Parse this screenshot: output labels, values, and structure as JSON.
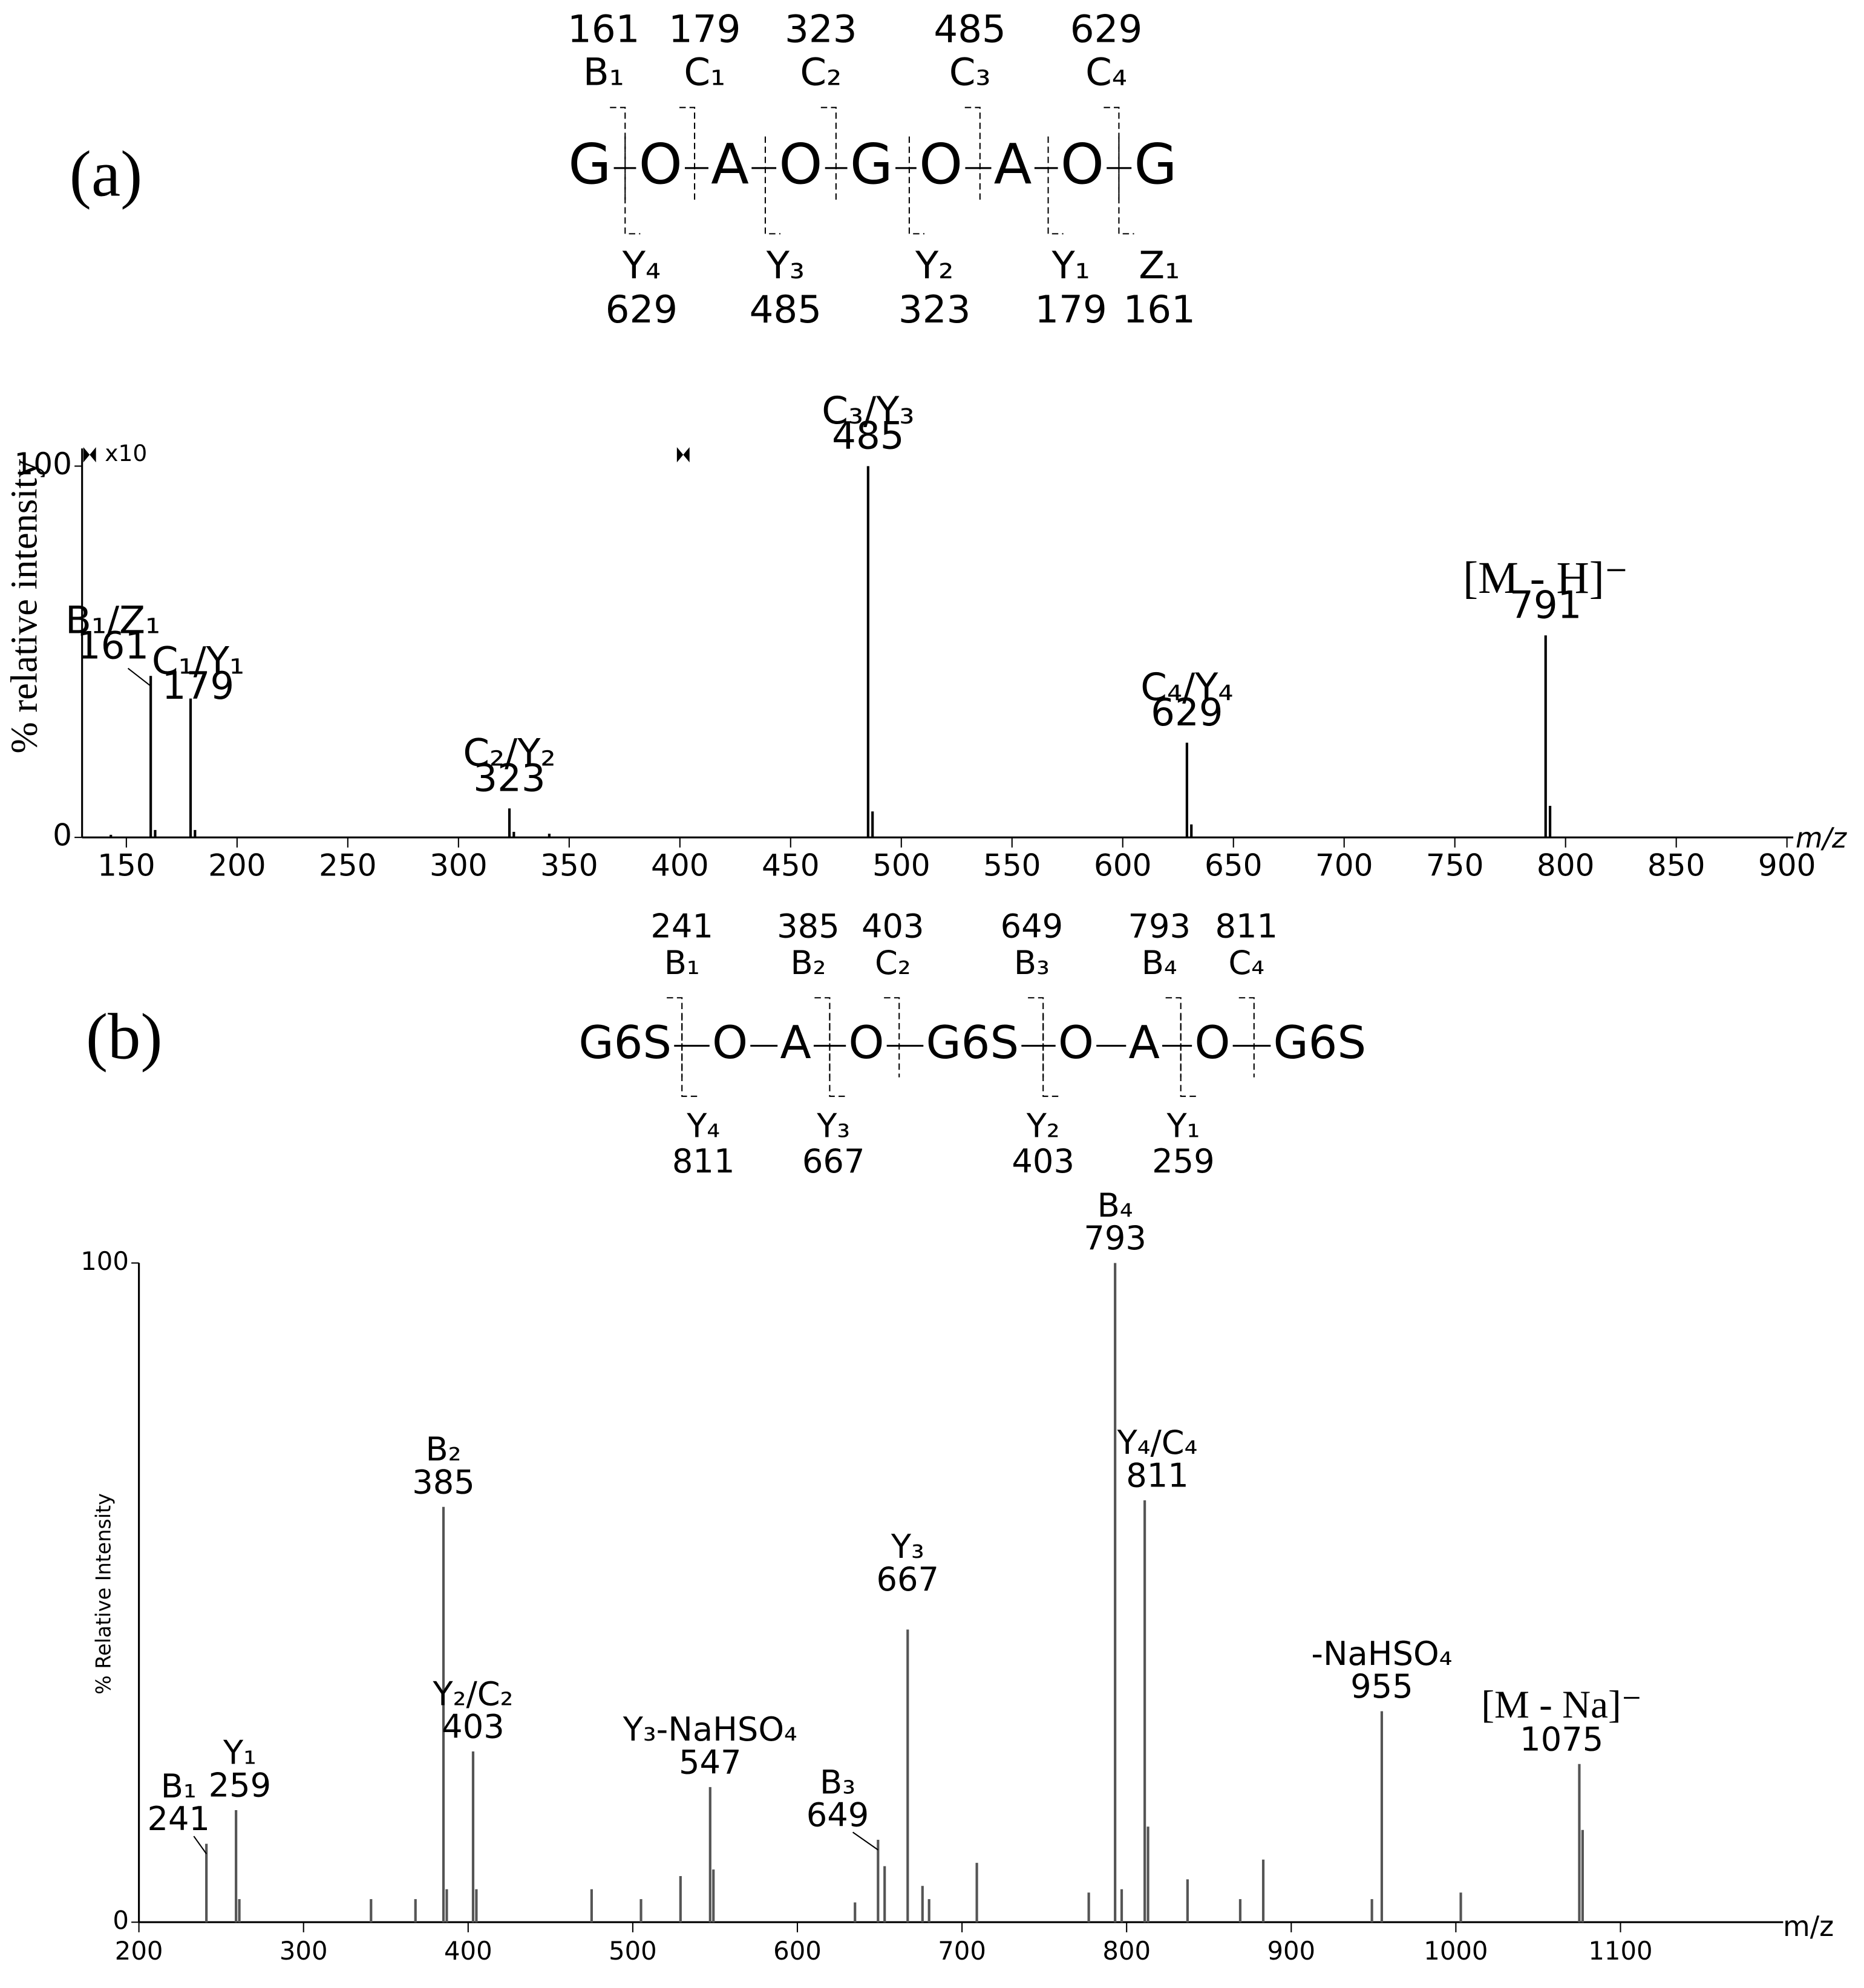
{
  "chart_data": [
    {
      "type": "stem",
      "panel_label": "(a)",
      "annotation": "x10",
      "y_label": "% relative intensity",
      "x_label": "m/z",
      "structure": {
        "residues": [
          "G",
          "O",
          "A",
          "O",
          "G",
          "O",
          "A",
          "O",
          "G"
        ],
        "top": [
          {
            "mass": 161,
            "ion": "B₁"
          },
          {
            "mass": 179,
            "ion": "C₁"
          },
          {
            "mass": 323,
            "ion": "C₂"
          },
          {
            "mass": 485,
            "ion": "C₃"
          },
          {
            "mass": 629,
            "ion": "C₄"
          }
        ],
        "bottom": [
          {
            "ion": "Y₄",
            "mass": 629
          },
          {
            "ion": "Y₃",
            "mass": 485
          },
          {
            "ion": "Y₂",
            "mass": 323
          },
          {
            "ion": "Y₁",
            "mass": 179
          },
          {
            "ion": "Z₁",
            "mass": 161
          }
        ]
      },
      "x": [
        143,
        161,
        163,
        179,
        181,
        323,
        325,
        341,
        485,
        487,
        629,
        631,
        791,
        793
      ],
      "values": [
        0.7,
        43.5,
        2,
        37.4,
        2,
        7.8,
        1.5,
        1,
        100,
        7,
        25.5,
        3.5,
        54.4,
        8.5
      ],
      "labels": [
        null,
        "B₁/Z₁",
        null,
        "C₁/Y₁",
        null,
        "C₂/Y₂",
        null,
        null,
        "C₃/Y₃",
        null,
        "C₄/Y₄",
        null,
        "[M - H]⁻",
        null
      ],
      "color": "#000000",
      "xlim": [
        130,
        900
      ],
      "xticks": [
        150,
        200,
        250,
        300,
        350,
        400,
        450,
        500,
        550,
        600,
        650,
        700,
        750,
        800,
        850,
        900
      ],
      "ylim": [
        0,
        100
      ],
      "yticks": [
        0,
        100
      ]
    },
    {
      "type": "stem",
      "panel_label": "(b)",
      "y_label": "% Relative Intensity",
      "x_label": "m/z",
      "structure": {
        "residues": [
          "G6S",
          "O",
          "A",
          "O",
          "G6S",
          "O",
          "A",
          "O",
          "G6S"
        ],
        "top": [
          {
            "mass": 241,
            "ion": "B₁"
          },
          {
            "mass": 385,
            "ion": "B₂"
          },
          {
            "mass": 403,
            "ion": "C₂"
          },
          {
            "mass": 649,
            "ion": "B₃"
          },
          {
            "mass": 793,
            "ion": "B₄"
          },
          {
            "mass": 811,
            "ion": "C₄"
          }
        ],
        "bottom": [
          {
            "ion": "Y₄",
            "mass": 811
          },
          {
            "ion": "Y₃",
            "mass": 667
          },
          {
            "ion": "Y₂",
            "mass": 403
          },
          {
            "ion": "Y₁",
            "mass": 259
          }
        ]
      },
      "x": [
        241,
        259,
        261,
        341,
        368,
        385,
        387,
        403,
        405,
        475,
        505,
        529,
        547,
        549,
        635,
        649,
        653,
        667,
        676,
        680,
        709,
        777,
        793,
        797,
        811,
        813,
        837,
        869,
        883,
        949,
        955,
        1003,
        1075,
        1077
      ],
      "values": [
        11.9,
        17,
        3.5,
        3.5,
        3.5,
        63,
        5,
        25.9,
        5,
        5,
        3.5,
        7,
        20.5,
        8,
        3,
        12.5,
        8.5,
        44.4,
        5.5,
        3.5,
        9,
        4.5,
        100,
        5,
        64,
        14.5,
        6.5,
        3.5,
        9.5,
        3.5,
        32,
        4.5,
        24,
        14
      ],
      "labels": [
        "B₁",
        "Y₁",
        null,
        null,
        null,
        "B₂",
        null,
        "Y₂/C₂",
        null,
        null,
        null,
        null,
        "Y₃-NaHSO₄",
        null,
        null,
        "B₃",
        null,
        "Y₃",
        null,
        null,
        null,
        null,
        "B₄",
        null,
        "Y₄/C₄",
        null,
        null,
        null,
        null,
        null,
        "-NaHSO₄",
        null,
        "[M - Na]⁻",
        null
      ],
      "color": "#555555",
      "xlim": [
        200,
        1195
      ],
      "xticks": [
        200,
        300,
        400,
        500,
        600,
        700,
        800,
        900,
        1000,
        1100
      ],
      "ylim": [
        0,
        100
      ],
      "yticks": [
        0,
        100
      ]
    }
  ]
}
